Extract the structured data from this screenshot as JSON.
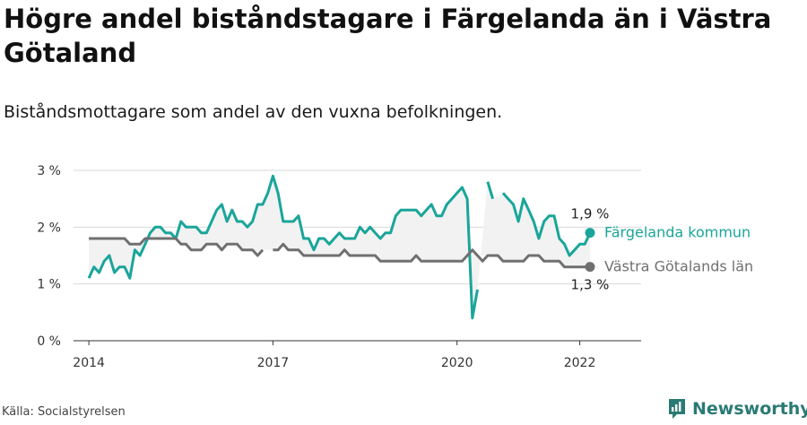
{
  "title": "Högre andel biståndstagare i Färgelanda än i Västra Götaland",
  "subtitle": "Biståndsmottagare som andel av den vuxna befolkningen.",
  "source": "Källa: Socialstyrelsen",
  "brand": {
    "name": "Newsworthy",
    "icon": "newsworthy-logo-icon",
    "color": "#2a7a74"
  },
  "chart_data": {
    "type": "line",
    "ylim": [
      0,
      3
    ],
    "yticks": [
      0,
      1,
      2,
      3
    ],
    "ytick_labels": [
      "0 %",
      "1 %",
      "2 %",
      "3 %"
    ],
    "xlim": [
      2013.75,
      2023.0
    ],
    "xticks": [
      2014,
      2017,
      2020,
      2022
    ],
    "xtick_labels": [
      "2014",
      "2017",
      "2020",
      "2022"
    ],
    "grid": true,
    "band_between_series": true,
    "series": [
      {
        "name": "Färgelanda kommun",
        "color": "#1aa59a",
        "end_label": "1,9 %",
        "x": [
          2014.0,
          2014.083,
          2014.167,
          2014.25,
          2014.333,
          2014.417,
          2014.5,
          2014.583,
          2014.667,
          2014.75,
          2014.833,
          2014.917,
          2015.0,
          2015.083,
          2015.167,
          2015.25,
          2015.333,
          2015.417,
          2015.5,
          2015.583,
          2015.667,
          2015.75,
          2015.833,
          2015.917,
          2016.0,
          2016.083,
          2016.167,
          2016.25,
          2016.333,
          2016.417,
          2016.5,
          2016.583,
          2016.667,
          2016.75,
          2016.833,
          2016.917,
          2017.0,
          2017.083,
          2017.167,
          2017.25,
          2017.333,
          2017.417,
          2017.5,
          2017.583,
          2017.667,
          2017.75,
          2017.833,
          2017.917,
          2018.0,
          2018.083,
          2018.167,
          2018.25,
          2018.333,
          2018.417,
          2018.5,
          2018.583,
          2018.667,
          2018.75,
          2018.833,
          2018.917,
          2019.0,
          2019.083,
          2019.167,
          2019.25,
          2019.333,
          2019.417,
          2019.5,
          2019.583,
          2019.667,
          2019.75,
          2019.833,
          2019.917,
          2020.0,
          2020.083,
          2020.167,
          2020.25,
          2020.333,
          2020.417,
          2020.5,
          2020.583,
          2020.667,
          2020.75,
          2020.833,
          2020.917,
          2021.0,
          2021.083,
          2021.167,
          2021.25,
          2021.333,
          2021.417,
          2021.5,
          2021.583,
          2021.667,
          2021.75,
          2021.833,
          2021.917,
          2022.0,
          2022.083,
          2022.167
        ],
        "y": [
          1.1,
          1.3,
          1.2,
          1.4,
          1.5,
          1.2,
          1.3,
          1.3,
          1.1,
          1.6,
          1.5,
          1.7,
          1.9,
          2.0,
          2.0,
          1.9,
          1.9,
          1.8,
          2.1,
          2.0,
          2.0,
          2.0,
          1.9,
          1.9,
          2.1,
          2.3,
          2.4,
          2.1,
          2.3,
          2.1,
          2.1,
          2.0,
          2.1,
          2.4,
          2.4,
          2.6,
          2.9,
          2.6,
          2.1,
          2.1,
          2.1,
          2.2,
          1.8,
          1.8,
          1.6,
          1.8,
          1.8,
          1.7,
          1.8,
          1.9,
          1.8,
          1.8,
          1.8,
          2.0,
          1.9,
          2.0,
          1.9,
          1.8,
          1.9,
          1.9,
          2.2,
          2.3,
          2.3,
          2.3,
          2.3,
          2.2,
          2.3,
          2.4,
          2.2,
          2.2,
          2.4,
          2.5,
          2.6,
          2.7,
          2.5,
          0.4,
          0.9,
          null,
          2.8,
          2.5,
          null,
          2.6,
          2.5,
          2.4,
          2.1,
          2.5,
          2.3,
          2.1,
          1.8,
          2.1,
          2.2,
          2.2,
          1.8,
          1.7,
          1.5,
          1.6,
          1.7,
          1.7,
          1.9
        ]
      },
      {
        "name": "Västra Götalands län",
        "color": "#707070",
        "end_label": "1,3 %",
        "x": [
          2014.0,
          2014.083,
          2014.167,
          2014.25,
          2014.333,
          2014.417,
          2014.5,
          2014.583,
          2014.667,
          2014.75,
          2014.833,
          2014.917,
          2015.0,
          2015.083,
          2015.167,
          2015.25,
          2015.333,
          2015.417,
          2015.5,
          2015.583,
          2015.667,
          2015.75,
          2015.833,
          2015.917,
          2016.0,
          2016.083,
          2016.167,
          2016.25,
          2016.333,
          2016.417,
          2016.5,
          2016.583,
          2016.667,
          2016.75,
          2016.833,
          2016.917,
          2017.0,
          2017.083,
          2017.167,
          2017.25,
          2017.333,
          2017.417,
          2017.5,
          2017.583,
          2017.667,
          2017.75,
          2017.833,
          2017.917,
          2018.0,
          2018.083,
          2018.167,
          2018.25,
          2018.333,
          2018.417,
          2018.5,
          2018.583,
          2018.667,
          2018.75,
          2018.833,
          2018.917,
          2019.0,
          2019.083,
          2019.167,
          2019.25,
          2019.333,
          2019.417,
          2019.5,
          2019.583,
          2019.667,
          2019.75,
          2019.833,
          2019.917,
          2020.0,
          2020.083,
          2020.167,
          2020.25,
          2020.333,
          2020.417,
          2020.5,
          2020.583,
          2020.667,
          2020.75,
          2020.833,
          2020.917,
          2021.0,
          2021.083,
          2021.167,
          2021.25,
          2021.333,
          2021.417,
          2021.5,
          2021.583,
          2021.667,
          2021.75,
          2021.833,
          2021.917,
          2022.0,
          2022.083,
          2022.167
        ],
        "y": [
          1.8,
          1.8,
          1.8,
          1.8,
          1.8,
          1.8,
          1.8,
          1.8,
          1.7,
          1.7,
          1.7,
          1.8,
          1.8,
          1.8,
          1.8,
          1.8,
          1.8,
          1.8,
          1.7,
          1.7,
          1.6,
          1.6,
          1.6,
          1.7,
          1.7,
          1.7,
          1.6,
          1.7,
          1.7,
          1.7,
          1.6,
          1.6,
          1.6,
          1.5,
          1.6,
          null,
          1.6,
          1.6,
          1.7,
          1.6,
          1.6,
          1.6,
          1.5,
          1.5,
          1.5,
          1.5,
          1.5,
          1.5,
          1.5,
          1.5,
          1.6,
          1.5,
          1.5,
          1.5,
          1.5,
          1.5,
          1.5,
          1.4,
          1.4,
          1.4,
          1.4,
          1.4,
          1.4,
          1.4,
          1.5,
          1.4,
          1.4,
          1.4,
          1.4,
          1.4,
          1.4,
          1.4,
          1.4,
          1.4,
          1.5,
          1.6,
          1.5,
          1.4,
          1.5,
          1.5,
          1.5,
          1.4,
          1.4,
          1.4,
          1.4,
          1.4,
          1.5,
          1.5,
          1.5,
          1.4,
          1.4,
          1.4,
          1.4,
          1.3,
          1.3,
          1.3,
          1.3,
          1.3,
          1.3
        ]
      }
    ]
  }
}
